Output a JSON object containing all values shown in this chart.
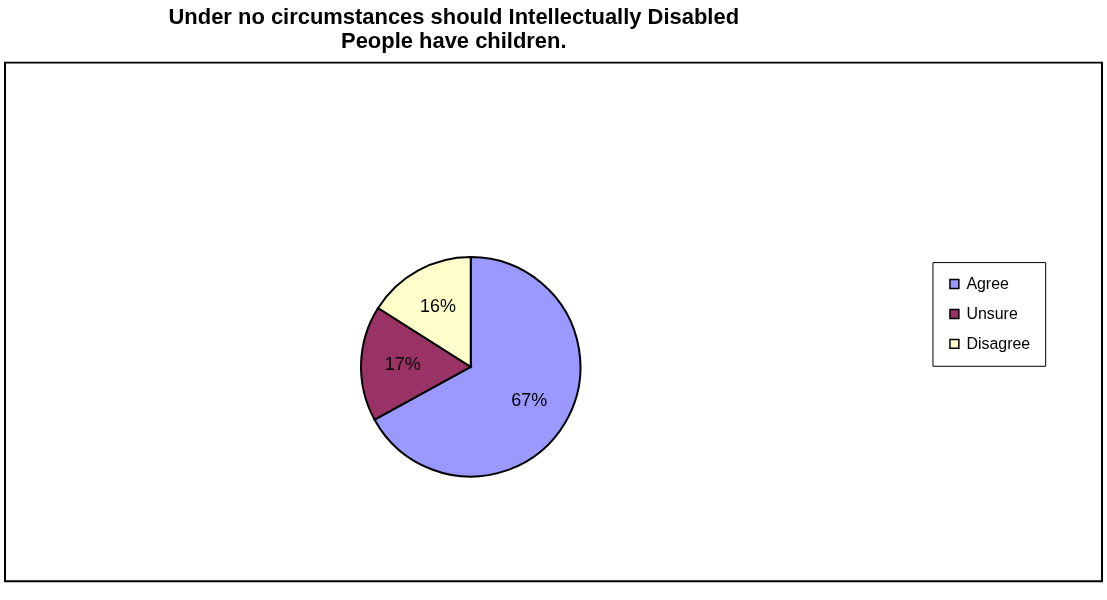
{
  "chart_data": {
    "type": "pie",
    "title": [
      "Under no circumstances should Intellectually Disabled",
      "People have children."
    ],
    "categories": [
      "Agree",
      "Unsure",
      "Disagree"
    ],
    "values": [
      67,
      17,
      16
    ],
    "colors": [
      "#9999ff",
      "#993366",
      "#ffffcc"
    ],
    "value_labels": [
      "67%",
      "17%",
      "16%"
    ],
    "legend": "right"
  }
}
